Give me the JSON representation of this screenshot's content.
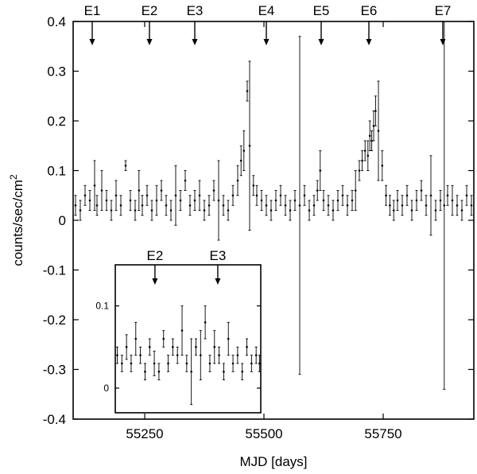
{
  "chart_data": [
    {
      "type": "scatter",
      "panel": "main",
      "xlabel": "MJD [days]",
      "ylabel": "counts/sec/cm",
      "ylabel_superscript": "2",
      "xlim": [
        55100,
        55940
      ],
      "ylim": [
        -0.4,
        0.4
      ],
      "xticks": [
        55250,
        55500,
        55750
      ],
      "yticks": [
        -0.4,
        -0.3,
        -0.2,
        -0.1,
        0,
        0.1,
        0.2,
        0.3,
        0.4
      ],
      "ytick_labels": [
        "-0.4",
        "-0.3",
        "-0.2",
        "-0.1",
        "0",
        "0.1",
        "0.2",
        "0.3",
        "0.4"
      ],
      "error_bars": true,
      "marker_color": "#000000",
      "annotations": [
        {
          "label": "E1",
          "x": 55140
        },
        {
          "label": "E2",
          "x": 55260
        },
        {
          "label": "E3",
          "x": 55355
        },
        {
          "label": "E4",
          "x": 55505
        },
        {
          "label": "E5",
          "x": 55620
        },
        {
          "label": "E6",
          "x": 55720
        },
        {
          "label": "E7",
          "x": 55875
        }
      ],
      "series": [
        {
          "x": [
            55105,
            55115,
            55125,
            55135,
            55145,
            55150,
            55160,
            55170,
            55180,
            55190,
            55200,
            55210,
            55220,
            55230,
            55238,
            55245,
            55255,
            55265,
            55275,
            55285,
            55295,
            55305,
            55315,
            55325,
            55335,
            55345,
            55355,
            55365,
            55375,
            55385,
            55395,
            55405,
            55415,
            55425,
            55435,
            55445,
            55452,
            55458,
            55465,
            55470,
            55478,
            55485,
            55495,
            55505,
            55515,
            55525,
            55535,
            55545,
            55555,
            55565,
            55575,
            55585,
            55595,
            55605,
            55612,
            55618,
            55625,
            55635,
            55645,
            55655,
            55665,
            55675,
            55685,
            55692,
            55700,
            55706,
            55712,
            55718,
            55722,
            55726,
            55730,
            55734,
            55740,
            55748,
            55756,
            55764,
            55772,
            55780,
            55790,
            55800,
            55810,
            55820,
            55830,
            55840,
            55850,
            55860,
            55870,
            55878,
            55885,
            55895,
            55905,
            55915,
            55925,
            55935
          ],
          "y": [
            0.03,
            0.02,
            0.05,
            0.04,
            0.07,
            0.03,
            0.06,
            0.04,
            0.02,
            0.05,
            0.03,
            0.11,
            0.04,
            0.02,
            0.06,
            0.03,
            0.05,
            0.02,
            0.04,
            0.06,
            0.03,
            0.02,
            0.05,
            0.04,
            0.08,
            0.03,
            0.04,
            0.05,
            0.02,
            0.03,
            0.06,
            0.04,
            0.03,
            0.02,
            0.05,
            0.08,
            0.12,
            0.14,
            0.26,
            0.15,
            0.07,
            0.05,
            0.04,
            0.03,
            0.02,
            0.04,
            0.05,
            0.03,
            0.02,
            0.04,
            0.03,
            0.05,
            0.02,
            0.03,
            0.06,
            0.1,
            0.04,
            0.03,
            0.02,
            0.04,
            0.05,
            0.03,
            0.04,
            0.06,
            0.1,
            0.12,
            0.14,
            0.13,
            0.17,
            0.16,
            0.19,
            0.22,
            0.18,
            0.11,
            0.05,
            0.03,
            0.02,
            0.04,
            0.03,
            0.05,
            0.02,
            0.04,
            0.06,
            0.03,
            0.05,
            0.02,
            0.04,
            0.03,
            0.05,
            0.04,
            0.03,
            0.02,
            0.05,
            0.03
          ],
          "err": [
            0.02,
            0.02,
            0.02,
            0.02,
            0.05,
            0.02,
            0.04,
            0.02,
            0.02,
            0.03,
            0.02,
            0.01,
            0.02,
            0.02,
            0.04,
            0.02,
            0.02,
            0.02,
            0.03,
            0.02,
            0.02,
            0.02,
            0.06,
            0.02,
            0.02,
            0.02,
            0.02,
            0.03,
            0.02,
            0.02,
            0.02,
            0.08,
            0.02,
            0.02,
            0.02,
            0.03,
            0.03,
            0.04,
            0.02,
            0.17,
            0.02,
            0.02,
            0.02,
            0.02,
            0.02,
            0.02,
            0.02,
            0.02,
            0.02,
            0.02,
            0.34,
            0.02,
            0.02,
            0.02,
            0.02,
            0.04,
            0.02,
            0.02,
            0.02,
            0.02,
            0.02,
            0.02,
            0.02,
            0.04,
            0.02,
            0.02,
            0.02,
            0.03,
            0.03,
            0.02,
            0.03,
            0.03,
            0.1,
            0.03,
            0.02,
            0.02,
            0.02,
            0.02,
            0.02,
            0.02,
            0.02,
            0.02,
            0.02,
            0.02,
            0.08,
            0.02,
            0.02,
            0.37,
            0.02,
            0.03,
            0.02,
            0.02,
            0.02,
            0.02
          ]
        }
      ]
    },
    {
      "type": "scatter",
      "panel": "inset",
      "xlim": [
        55200,
        55420
      ],
      "ylim": [
        -0.03,
        0.15
      ],
      "yticks": [
        0,
        0.1
      ],
      "ytick_labels": [
        "0",
        "0.1"
      ],
      "error_bars": true,
      "marker_color": "#000000",
      "annotations": [
        {
          "label": "E2",
          "x": 55260
        },
        {
          "label": "E3",
          "x": 55355
        }
      ],
      "series": [
        {
          "x": [
            55203,
            55210,
            55217,
            55224,
            55231,
            55238,
            55245,
            55252,
            55259,
            55266,
            55273,
            55280,
            55287,
            55294,
            55301,
            55308,
            55315,
            55322,
            55329,
            55336,
            55343,
            55350,
            55357,
            55364,
            55371,
            55378,
            55385,
            55392,
            55399,
            55406,
            55413,
            55418
          ],
          "y": [
            0.04,
            0.03,
            0.05,
            0.03,
            0.06,
            0.04,
            0.02,
            0.05,
            0.03,
            0.02,
            0.06,
            0.03,
            0.05,
            0.04,
            0.07,
            0.03,
            0.02,
            0.05,
            0.04,
            0.08,
            0.03,
            0.05,
            0.04,
            0.02,
            0.06,
            0.03,
            0.04,
            0.02,
            0.05,
            0.03,
            0.04,
            0.03
          ],
          "err": [
            0.01,
            0.01,
            0.015,
            0.01,
            0.02,
            0.01,
            0.01,
            0.01,
            0.015,
            0.01,
            0.01,
            0.01,
            0.01,
            0.01,
            0.03,
            0.01,
            0.04,
            0.01,
            0.03,
            0.02,
            0.01,
            0.02,
            0.01,
            0.01,
            0.02,
            0.01,
            0.01,
            0.01,
            0.01,
            0.01,
            0.01,
            0.01
          ]
        }
      ]
    }
  ]
}
